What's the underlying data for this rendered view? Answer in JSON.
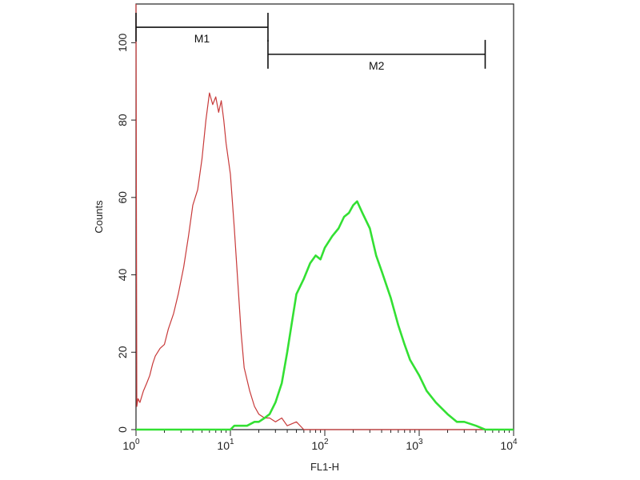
{
  "chart_data": {
    "type": "line",
    "xlabel": "FL1-H",
    "ylabel": "Counts",
    "x_scale": "log",
    "xlim": [
      1,
      10000
    ],
    "ylim": [
      0,
      110
    ],
    "x_ticks": [
      {
        "base": "10",
        "exp": "0",
        "value": 1
      },
      {
        "base": "10",
        "exp": "1",
        "value": 10
      },
      {
        "base": "10",
        "exp": "2",
        "value": 100
      },
      {
        "base": "10",
        "exp": "3",
        "value": 1000
      },
      {
        "base": "10",
        "exp": "4",
        "value": 10000
      }
    ],
    "y_ticks": [
      "0",
      "20",
      "40",
      "60",
      "80",
      "100"
    ],
    "grid": false,
    "markers": [
      {
        "label": "M1",
        "x_start": 1,
        "x_end": 25,
        "y": 104
      },
      {
        "label": "M2",
        "x_start": 25,
        "x_end": 5000,
        "y": 97
      }
    ],
    "series": [
      {
        "color": "#c83a3a",
        "stroke_width": 1.2,
        "points": [
          [
            1.0,
            110
          ],
          [
            1.02,
            6
          ],
          [
            1.05,
            8
          ],
          [
            1.1,
            7
          ],
          [
            1.2,
            10
          ],
          [
            1.3,
            12
          ],
          [
            1.4,
            14
          ],
          [
            1.5,
            17
          ],
          [
            1.6,
            19
          ],
          [
            1.8,
            21
          ],
          [
            2.0,
            22
          ],
          [
            2.2,
            26
          ],
          [
            2.5,
            30
          ],
          [
            2.8,
            35
          ],
          [
            3.2,
            42
          ],
          [
            3.6,
            50
          ],
          [
            4.0,
            58
          ],
          [
            4.5,
            62
          ],
          [
            5.0,
            70
          ],
          [
            5.5,
            80
          ],
          [
            6.0,
            87
          ],
          [
            6.5,
            84
          ],
          [
            7.0,
            86
          ],
          [
            7.5,
            82
          ],
          [
            8.0,
            85
          ],
          [
            8.5,
            80
          ],
          [
            9.0,
            74
          ],
          [
            10.0,
            66
          ],
          [
            11.0,
            52
          ],
          [
            12.0,
            38
          ],
          [
            13.0,
            25
          ],
          [
            14.0,
            16
          ],
          [
            16.0,
            10
          ],
          [
            18.0,
            6
          ],
          [
            20.0,
            4
          ],
          [
            23.0,
            3
          ],
          [
            26.0,
            3
          ],
          [
            30.0,
            2
          ],
          [
            35.0,
            3
          ],
          [
            40.0,
            1
          ],
          [
            50.0,
            2
          ],
          [
            60.0,
            0
          ],
          [
            10000,
            0
          ]
        ]
      },
      {
        "color": "#33e033",
        "stroke_width": 2.6,
        "points": [
          [
            1.0,
            0
          ],
          [
            10.0,
            0
          ],
          [
            11.0,
            1
          ],
          [
            13.0,
            1
          ],
          [
            15.0,
            1
          ],
          [
            18.0,
            2
          ],
          [
            20.0,
            2
          ],
          [
            23.0,
            3
          ],
          [
            26.0,
            4
          ],
          [
            30.0,
            7
          ],
          [
            35.0,
            12
          ],
          [
            40.0,
            20
          ],
          [
            45.0,
            28
          ],
          [
            50.0,
            35
          ],
          [
            60.0,
            39
          ],
          [
            70.0,
            43
          ],
          [
            80.0,
            45
          ],
          [
            90.0,
            44
          ],
          [
            100.0,
            47
          ],
          [
            120.0,
            50
          ],
          [
            140.0,
            52
          ],
          [
            160.0,
            55
          ],
          [
            180.0,
            56
          ],
          [
            200.0,
            58
          ],
          [
            220.0,
            59
          ],
          [
            250.0,
            56
          ],
          [
            300.0,
            52
          ],
          [
            350.0,
            45
          ],
          [
            400.0,
            41
          ],
          [
            500.0,
            34
          ],
          [
            600.0,
            27
          ],
          [
            700.0,
            22
          ],
          [
            800.0,
            18
          ],
          [
            1000.0,
            14
          ],
          [
            1200.0,
            10
          ],
          [
            1500.0,
            7
          ],
          [
            2000.0,
            4
          ],
          [
            2500.0,
            2
          ],
          [
            3000.0,
            2
          ],
          [
            4000.0,
            1
          ],
          [
            5000.0,
            0
          ],
          [
            10000,
            0
          ]
        ]
      }
    ]
  }
}
